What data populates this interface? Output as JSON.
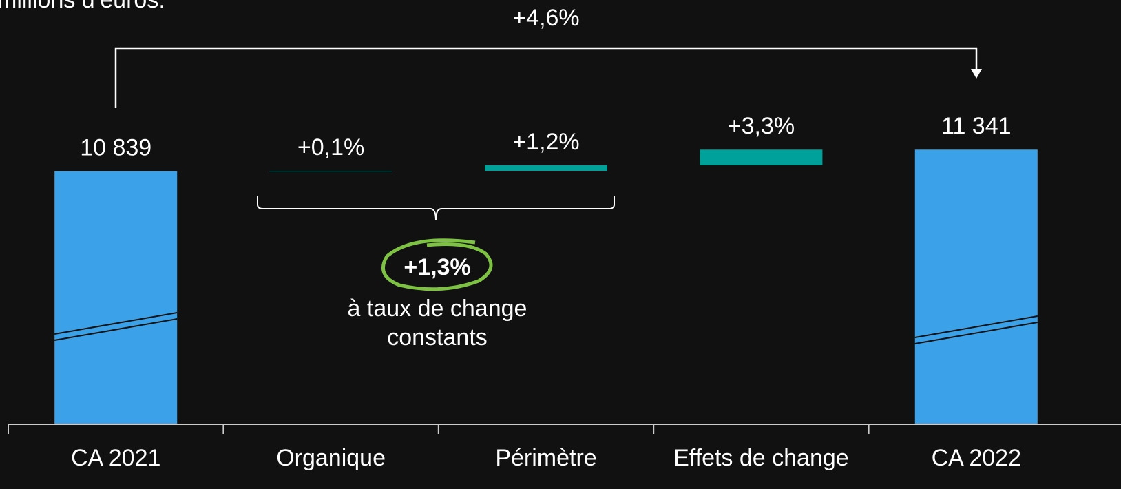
{
  "chart_data": {
    "type": "waterfall",
    "subtitle": "millions d’euros.",
    "categories": [
      "CA 2021",
      "Organique",
      "Périmètre",
      "Effets de change",
      "CA 2022"
    ],
    "values": [
      10839,
      11,
      130,
      361,
      11341
    ],
    "value_labels": [
      "10 839",
      null,
      null,
      null,
      "11 341"
    ],
    "pct": [
      null,
      0.1,
      1.2,
      3.3,
      null
    ],
    "pct_labels": [
      null,
      "+0,1%",
      "+1,2%",
      "+3,3%",
      null
    ],
    "total_color": "#3ba1e8",
    "step_color": "#00a19a",
    "ylim": [
      5000,
      11600
    ],
    "axis_break": true,
    "annotations": {
      "total_change": "+4,6%",
      "constant_change": "+1,3%",
      "constant_note": [
        "à taux de change",
        "constants"
      ]
    }
  }
}
